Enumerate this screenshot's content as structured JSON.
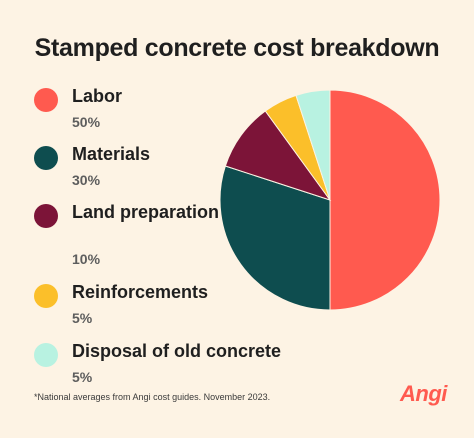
{
  "chart_data": {
    "type": "pie",
    "title": "Stamped concrete cost breakdown",
    "slices": [
      {
        "label": "Labor",
        "value": 50,
        "value_label": "50%",
        "color": "#ff5a4f"
      },
      {
        "label": "Materials",
        "value": 30,
        "value_label": "30%",
        "color": "#0e4d4f"
      },
      {
        "label": "Land preparation",
        "value": 10,
        "value_label": "10%",
        "color": "#7c1438"
      },
      {
        "label": "Reinforcements",
        "value": 5,
        "value_label": "5%",
        "color": "#fbbf2a"
      },
      {
        "label": "Disposal of old concrete",
        "value": 5,
        "value_label": "5%",
        "color": "#b8f2e1"
      }
    ],
    "legend_position": "left"
  },
  "footnote": "*National averages from Angi cost guides. November 2023.",
  "brand": "Angi"
}
